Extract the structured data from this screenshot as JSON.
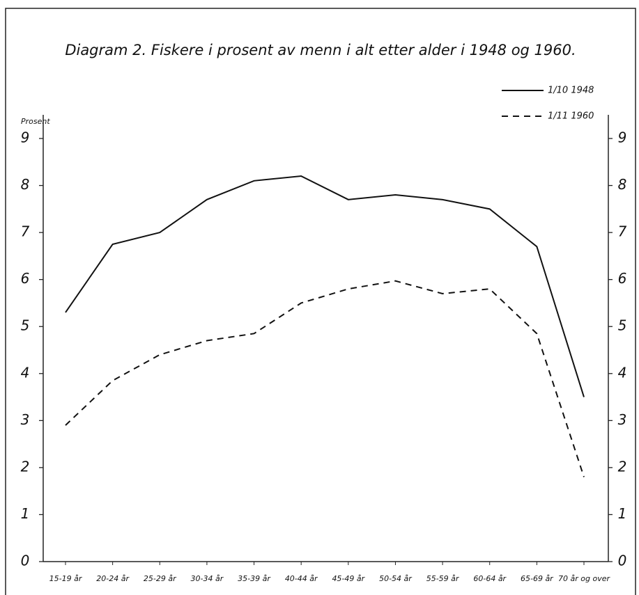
{
  "chart_data": {
    "type": "line",
    "title": "Diagram 2. Fiskere i prosent av menn i alt etter alder i 1948 og 1960.",
    "y_label": "Prosent",
    "categories": [
      "15-19 år",
      "20-24 år",
      "25-29 år",
      "30-34 år",
      "35-39 år",
      "40-44 år",
      "45-49 år",
      "50-54 år",
      "55-59 år",
      "60-64 år",
      "65-69 år",
      "70 år og over"
    ],
    "series": [
      {
        "name": "1/10 1948",
        "color": "#111111",
        "dash": "solid",
        "values": [
          5.3,
          6.75,
          7.0,
          7.7,
          8.1,
          8.2,
          7.7,
          7.8,
          7.7,
          7.5,
          6.7,
          3.5
        ]
      },
      {
        "name": "1/11 1960",
        "color": "#111111",
        "dash": "dashed",
        "values": [
          2.9,
          3.85,
          4.4,
          4.7,
          4.85,
          5.5,
          5.8,
          5.97,
          5.7,
          5.8,
          4.85,
          1.8
        ]
      }
    ],
    "ylim": [
      0,
      9
    ],
    "yticks": [
      0,
      1,
      2,
      3,
      4,
      5,
      6,
      7,
      8,
      9
    ],
    "grid": false,
    "legend": "top-right"
  }
}
